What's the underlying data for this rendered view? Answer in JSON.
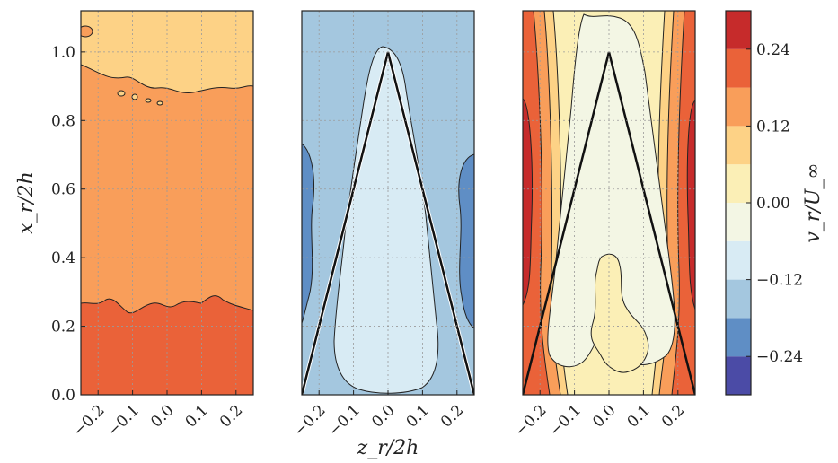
{
  "chart_data": {
    "type": "contour",
    "ylabel": "x_r/2h",
    "xlabel": "z_r/2h",
    "xlim": [
      -0.25,
      0.25
    ],
    "ylim": [
      0.0,
      1.12
    ],
    "grid": true,
    "x_ticks": [
      "−0.2",
      "−0.1",
      "0.0",
      "0.1",
      "0.2"
    ],
    "x_tick_values": [
      -0.2,
      -0.1,
      0.0,
      0.1,
      0.2
    ],
    "y_ticks": [
      "0.0",
      "0.2",
      "0.4",
      "0.6",
      "0.8",
      "1.0"
    ],
    "y_tick_values": [
      0.0,
      0.2,
      0.4,
      0.6,
      0.8,
      1.0
    ],
    "colorbar": {
      "label": "v_r/U_∞",
      "levels": [
        -0.3,
        -0.24,
        -0.18,
        -0.12,
        -0.06,
        0.0,
        0.06,
        0.12,
        0.18,
        0.24,
        0.3
      ],
      "colors": [
        "#4b4ba6",
        "#5f8ec5",
        "#a4c7df",
        "#d8ebf4",
        "#f3f6e4",
        "#fbefb6",
        "#fdd286",
        "#f99e5a",
        "#ea6239",
        "#c62b2b"
      ],
      "tick_labels": [
        "0.24",
        "0.12",
        "0.00",
        "−0.12",
        "−0.24"
      ],
      "tick_values": [
        0.24,
        0.12,
        0.0,
        -0.12,
        -0.24
      ]
    },
    "panels": [
      {
        "id": "left",
        "apex_outline": false,
        "regions": [
          {
            "y_from": 0.0,
            "y_to": 0.25,
            "level": 0.21,
            "color": "#ea6239"
          },
          {
            "y_from": 0.25,
            "y_to": 0.92,
            "level": 0.15,
            "color": "#f99e5a"
          },
          {
            "y_from": 0.92,
            "y_to": 1.12,
            "level": 0.09,
            "color": "#fdd286"
          }
        ]
      },
      {
        "id": "middle",
        "apex_outline": true,
        "apex": [
          0.0,
          1.0
        ],
        "base": [
          -0.25,
          0.25
        ],
        "background_level": -0.15,
        "background_color": "#a4c7df",
        "core_level": -0.09,
        "core_color": "#d8ebf4",
        "edge_level": -0.21,
        "edge_color": "#5f8ec5"
      },
      {
        "id": "right",
        "apex_outline": true,
        "apex": [
          0.0,
          1.0
        ],
        "base": [
          -0.25,
          0.25
        ],
        "core_level": -0.03,
        "core_color": "#f3f6e4",
        "lower_level": 0.03,
        "lower_color": "#fbefb6",
        "band_levels": [
          0.09,
          0.15,
          0.21,
          0.27
        ],
        "band_colors": [
          "#fdd286",
          "#f99e5a",
          "#ea6239",
          "#c62b2b"
        ]
      }
    ]
  }
}
